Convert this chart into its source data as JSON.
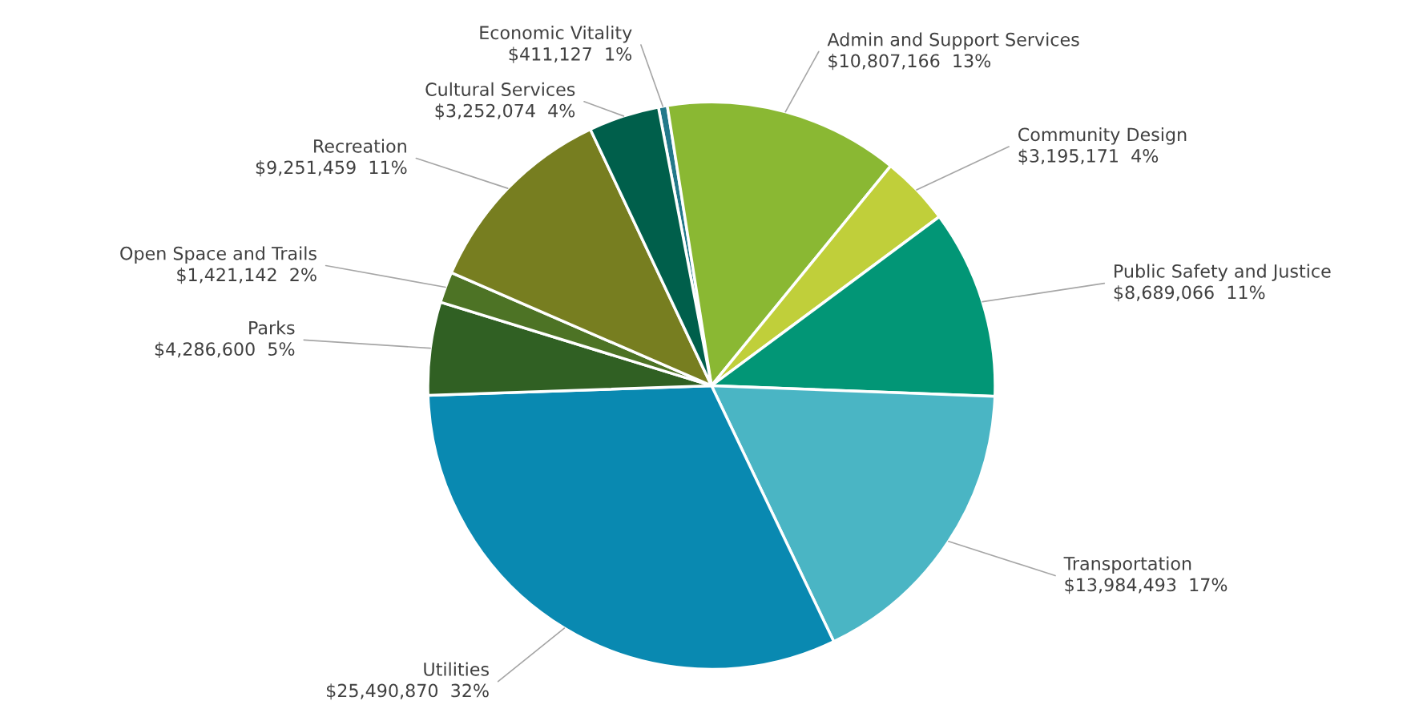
{
  "chart_data": {
    "type": "pie",
    "categories": [
      "Economic Vitality",
      "Admin and Support Services",
      "Community Design",
      "Public Safety and Justice",
      "Transportation",
      "Utilities",
      "Parks",
      "Open Space and Trails",
      "Recreation",
      "Cultural Services"
    ],
    "values": [
      411127,
      10807166,
      3195171,
      8689066,
      13984493,
      25490870,
      4286600,
      1421142,
      9251459,
      3252074
    ],
    "colors": [
      "#23788a",
      "#8ab833",
      "#c0cf3a",
      "#029676",
      "#4ab5c4",
      "#0989b1",
      "#306023",
      "#4d7325",
      "#777e20",
      "#005f4b"
    ],
    "value_labels": [
      "$411,127  1%",
      "$10,807,166  13%",
      "$3,195,171  4%",
      "$8,689,066  11%",
      "$13,984,493  17%",
      "$25,490,870  32%",
      "$4,286,600  5%",
      "$1,421,142  2%",
      "$9,251,459  11%",
      "$3,252,074  4%"
    ]
  }
}
